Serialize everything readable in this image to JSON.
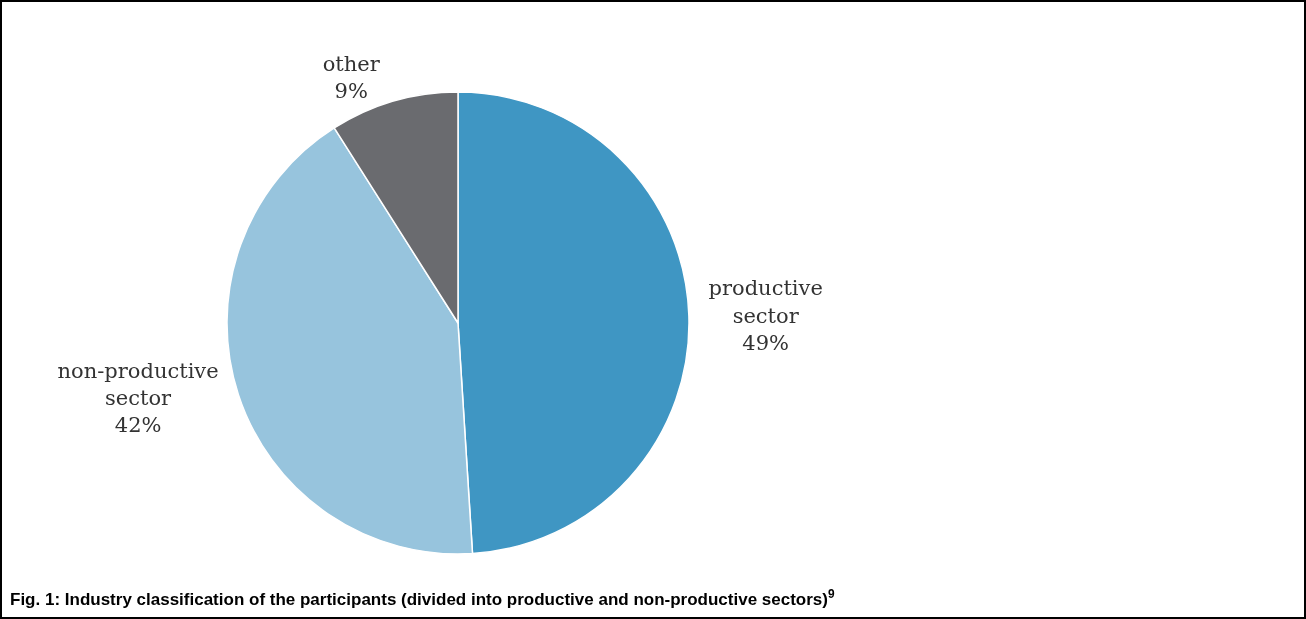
{
  "chart_data": {
    "type": "pie",
    "title": "Fig. 1: Industry classification of the participants (divided into productive and non-productive sectors)$^{9}$",
    "categories": [
      "productive sector",
      "non-productive sector",
      "other"
    ],
    "values": [
      49,
      42,
      9
    ],
    "colors": [
      "#3f96c3",
      "#97c4dd",
      "#6a6b6f"
    ],
    "value_labels": [
      "49%",
      "42%",
      "9%"
    ],
    "legend": false
  }
}
